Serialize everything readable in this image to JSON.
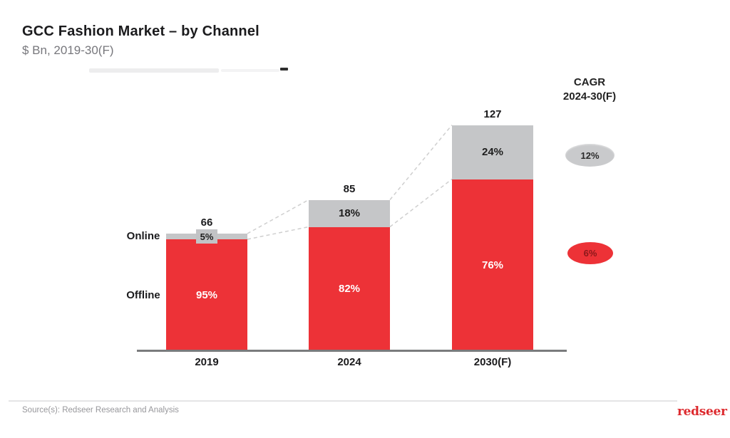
{
  "title": "GCC Fashion Market – by Channel",
  "subtitle": "$ Bn, 2019-30(F)",
  "cagr_panel": {
    "header_line1": "CAGR",
    "header_line2": "2024-30(F)",
    "online_value": "12%",
    "offline_value": "6%"
  },
  "axis_labels": {
    "online": "Online",
    "offline": "Offline"
  },
  "footer": {
    "source": "Source(s): Redseer Research and Analysis",
    "logo_text": "redseer"
  },
  "colors": {
    "offline_red": "#ed3237",
    "online_gray": "#c5c6c8",
    "cagr_gray_bubble": "#c9cacc",
    "cagr_red_bubble": "#ed3237",
    "connector_gray": "#cfcfcf",
    "axis_gray": "#7a7b7d"
  },
  "chart_data": {
    "type": "bar",
    "stacked": true,
    "title": "GCC Fashion Market – by Channel",
    "unit": "$ Bn",
    "categories": [
      "2019",
      "2024",
      "2030(F)"
    ],
    "totals": [
      66,
      85,
      127
    ],
    "series": [
      {
        "name": "Online",
        "role": "online",
        "color": "#c5c6c8",
        "share_pct": [
          5,
          18,
          24
        ]
      },
      {
        "name": "Offline",
        "role": "offline",
        "color": "#ed3237",
        "share_pct": [
          95,
          82,
          76
        ]
      }
    ],
    "cagr_2024_30": {
      "online": "12%",
      "offline": "6%"
    },
    "grid": false,
    "legend_position": "left-of-first-bar"
  }
}
